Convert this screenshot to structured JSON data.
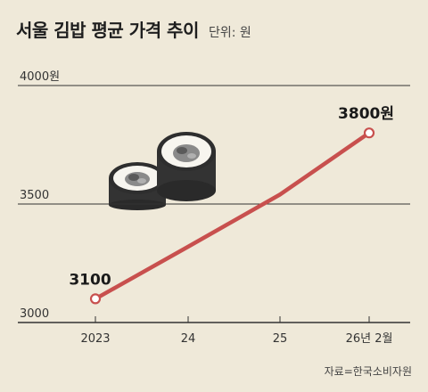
{
  "header": {
    "title": "서울 김밥 평균 가격 추이",
    "unit": "단위: 원"
  },
  "source": "자료=한국소비자원",
  "colors": {
    "background": "#efe9d9",
    "line": "#c8504e",
    "grid": "#333333",
    "marker_fill": "#ffffff"
  },
  "illustration": {
    "name": "gimbap-rolls-icon"
  },
  "chart_data": {
    "type": "line",
    "title": "서울 김밥 평균 가격 추이",
    "categories": [
      "2023",
      "24",
      "25",
      "26년 2월"
    ],
    "series": [
      {
        "values": [
          3100,
          3320,
          3540,
          3800
        ]
      }
    ],
    "y_tick_labels": [
      {
        "value": 4000,
        "label": "4000원"
      },
      {
        "value": 3500,
        "label": "3500"
      },
      {
        "value": 3000,
        "label": "3000"
      }
    ],
    "data_labels": [
      {
        "index": 0,
        "label": "3100"
      },
      {
        "index": 3,
        "label": "3800원"
      }
    ],
    "ylim": [
      3000,
      4000
    ],
    "markers_at": [
      0,
      3
    ],
    "grid": true
  }
}
